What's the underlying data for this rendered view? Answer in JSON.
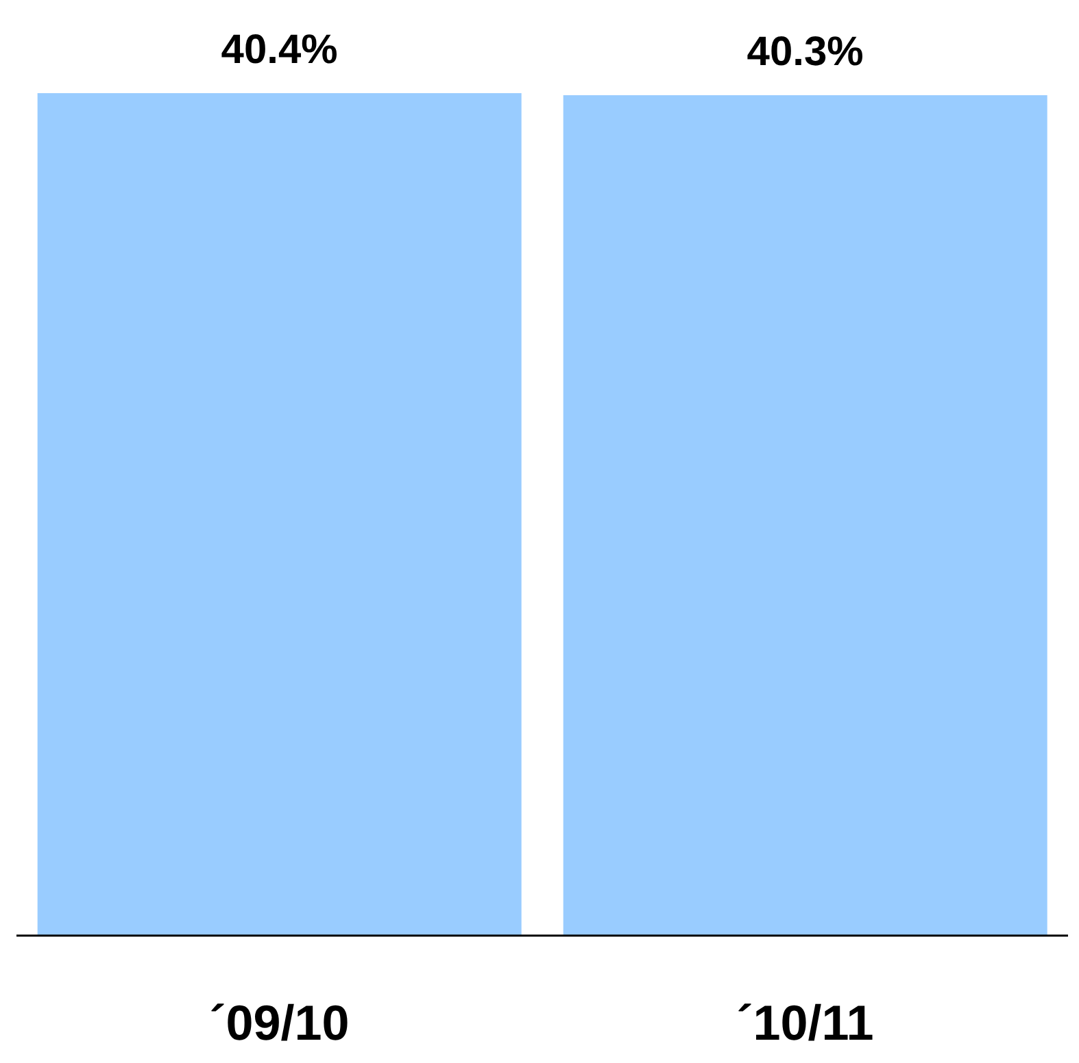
{
  "chart_data": {
    "type": "bar",
    "categories": [
      "´09/10",
      "´10/11"
    ],
    "values": [
      40.4,
      40.3
    ],
    "value_labels": [
      "40.4%",
      "40.3%"
    ],
    "color": "#99ccff",
    "grid": false,
    "tick_labels": "x"
  }
}
